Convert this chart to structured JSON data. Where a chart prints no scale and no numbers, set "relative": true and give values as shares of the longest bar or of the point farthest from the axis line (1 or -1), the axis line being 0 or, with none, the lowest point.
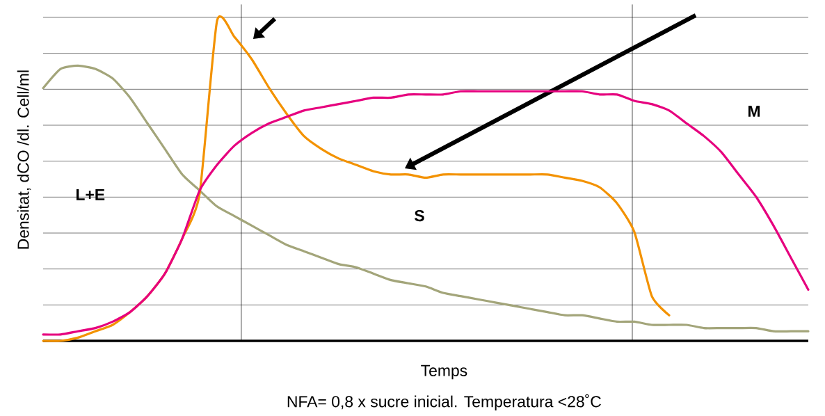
{
  "chart_data": {
    "type": "line",
    "relative": true,
    "xlabel": "Temps",
    "ylabel": "Densitat, dCO /dl. Cell/ml",
    "annotations": [
      "L+E",
      "S",
      "M",
      "NFA= 0,8 x sucre inicial. Temperatura <28˚C"
    ],
    "categories": [
      null,
      null,
      null,
      null,
      null,
      null,
      null,
      null,
      null,
      null,
      null,
      null,
      null,
      null,
      null,
      null,
      null,
      null,
      null,
      null,
      null,
      null,
      null,
      null,
      null,
      null,
      null,
      null,
      null,
      null,
      null,
      null,
      null,
      null,
      null,
      null,
      null,
      null,
      null,
      null,
      null,
      null,
      null,
      null,
      null
    ],
    "grid": "y",
    "line_style": "solid",
    "marker": "none",
    "series": [
      {
        "color": "#a3a57a",
        "values": [
          0.79,
          0.85,
          0.86,
          0.85,
          0.82,
          0.76,
          0.68,
          0.6,
          0.52,
          0.47,
          0.42,
          0.39,
          0.36,
          0.33,
          0.3,
          0.28,
          0.26,
          0.24,
          0.23,
          0.21,
          0.19,
          0.18,
          0.17,
          0.15,
          0.14,
          0.13,
          0.12,
          0.11,
          0.1,
          0.09,
          0.08,
          0.08,
          0.07,
          0.06,
          0.06,
          0.05,
          0.05,
          0.05,
          0.04,
          0.04,
          0.04,
          0.04,
          0.03,
          0.03,
          0.03
        ]
      },
      {
        "color": "#f39200",
        "values": [
          0.0,
          0.0,
          0.01,
          0.03,
          0.05,
          0.09,
          0.14,
          0.21,
          0.32,
          0.46,
          1.0,
          0.95,
          0.88,
          0.79,
          0.71,
          0.64,
          0.6,
          0.57,
          0.55,
          0.53,
          0.52,
          0.52,
          0.51,
          0.52,
          0.52,
          0.52,
          0.52,
          0.52,
          0.52,
          0.52,
          0.51,
          0.5,
          0.48,
          0.43,
          0.34,
          0.14,
          0.08,
          null,
          null,
          null,
          null,
          null,
          null,
          null,
          null
        ]
      },
      {
        "color": "#e6007e",
        "values": [
          0.02,
          0.02,
          0.03,
          0.04,
          0.06,
          0.09,
          0.14,
          0.21,
          0.32,
          0.47,
          0.55,
          0.61,
          0.65,
          0.68,
          0.7,
          0.72,
          0.73,
          0.74,
          0.75,
          0.76,
          0.76,
          0.77,
          0.77,
          0.77,
          0.78,
          0.78,
          0.78,
          0.78,
          0.78,
          0.78,
          0.78,
          0.78,
          0.77,
          0.77,
          0.75,
          0.74,
          0.72,
          0.68,
          0.64,
          0.59,
          0.52,
          0.45,
          0.36,
          0.26,
          0.16
        ]
      }
    ]
  }
}
